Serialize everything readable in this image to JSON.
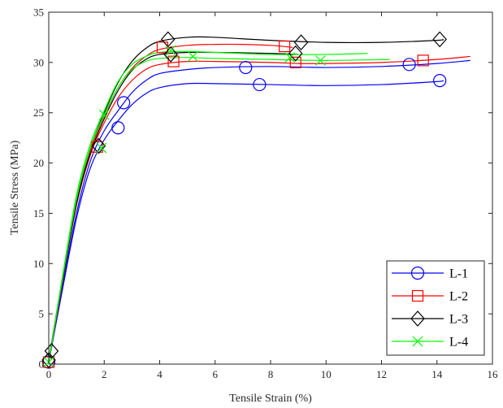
{
  "chart_data": {
    "type": "line",
    "xlabel": "Tensile Strain (%)",
    "ylabel": "Tensile Stress (MPa)",
    "xlim": [
      0,
      16
    ],
    "ylim": [
      0,
      35
    ],
    "xticks": [
      0,
      2,
      4,
      6,
      8,
      10,
      12,
      14,
      16
    ],
    "yticks": [
      0,
      5,
      10,
      15,
      20,
      25,
      30,
      35
    ],
    "xtick_labels": [
      "0",
      "2",
      "4",
      "6",
      "8",
      "10",
      "12",
      "14",
      "16"
    ],
    "ytick_labels": [
      "0",
      "5",
      "10",
      "15",
      "20",
      "25",
      "30",
      "35"
    ],
    "grid": false,
    "legend_position": "bottom-right",
    "series": [
      {
        "name": "L-1",
        "color": "#0000ff",
        "marker": "circle",
        "curves": [
          [
            [
              0,
              0.2
            ],
            [
              0.5,
              7.5
            ],
            [
              1.0,
              14.5
            ],
            [
              1.5,
              19.5
            ],
            [
              2.0,
              22.3
            ],
            [
              2.5,
              24.2
            ],
            [
              3.0,
              25.8
            ],
            [
              3.5,
              26.9
            ],
            [
              4.0,
              27.5
            ],
            [
              5.0,
              27.9
            ],
            [
              6.0,
              27.9
            ],
            [
              8.0,
              27.8
            ],
            [
              10.0,
              27.7
            ],
            [
              12.0,
              27.8
            ],
            [
              14.0,
              28.1
            ],
            [
              14.2,
              28.2
            ]
          ],
          [
            [
              0,
              0.2
            ],
            [
              0.5,
              7.8
            ],
            [
              1.0,
              15.0
            ],
            [
              1.5,
              20.2
            ],
            [
              2.0,
              23.2
            ],
            [
              2.5,
              25.2
            ],
            [
              3.0,
              27.0
            ],
            [
              3.5,
              28.2
            ],
            [
              4.0,
              28.9
            ],
            [
              5.0,
              29.3
            ],
            [
              6.0,
              29.5
            ],
            [
              8.0,
              29.6
            ],
            [
              10.0,
              29.5
            ],
            [
              12.0,
              29.6
            ],
            [
              14.0,
              29.9
            ],
            [
              15.2,
              30.2
            ]
          ]
        ],
        "markers": [
          [
            0,
            0.2
          ],
          [
            2.5,
            23.5
          ],
          [
            2.7,
            26.0
          ],
          [
            7.1,
            29.5
          ],
          [
            7.6,
            27.8
          ],
          [
            13.0,
            29.8
          ],
          [
            14.1,
            28.2
          ]
        ]
      },
      {
        "name": "L-2",
        "color": "#ff0000",
        "marker": "square",
        "curves": [
          [
            [
              0,
              0.2
            ],
            [
              0.5,
              8.2
            ],
            [
              1.0,
              15.8
            ],
            [
              1.5,
              20.8
            ],
            [
              2.0,
              24.0
            ],
            [
              2.5,
              26.5
            ],
            [
              3.0,
              28.2
            ],
            [
              3.5,
              29.3
            ],
            [
              4.0,
              29.8
            ],
            [
              5.0,
              30.1
            ],
            [
              6.0,
              30.1
            ],
            [
              8.0,
              30.0
            ],
            [
              9.0,
              29.9
            ],
            [
              10.0,
              29.9
            ],
            [
              12.0,
              30.0
            ],
            [
              14.0,
              30.3
            ],
            [
              15.2,
              30.6
            ]
          ],
          [
            [
              0,
              0.2
            ],
            [
              0.5,
              8.5
            ],
            [
              1.0,
              16.2
            ],
            [
              1.5,
              21.3
            ],
            [
              2.0,
              24.7
            ],
            [
              2.5,
              27.5
            ],
            [
              3.0,
              29.4
            ],
            [
              3.5,
              30.6
            ],
            [
              4.0,
              31.3
            ],
            [
              5.0,
              31.7
            ],
            [
              6.0,
              31.8
            ],
            [
              7.0,
              31.8
            ],
            [
              8.0,
              31.7
            ],
            [
              8.8,
              31.5
            ]
          ]
        ],
        "markers": [
          [
            0,
            0.2
          ],
          [
            1.75,
            21.6
          ],
          [
            4.1,
            31.5
          ],
          [
            4.5,
            30.1
          ],
          [
            8.5,
            31.6
          ],
          [
            8.9,
            30.0
          ],
          [
            13.5,
            30.2
          ]
        ]
      },
      {
        "name": "L-3",
        "color": "#000000",
        "marker": "diamond",
        "curves": [
          [
            [
              0,
              0.4
            ],
            [
              0.5,
              8.7
            ],
            [
              1.0,
              16.5
            ],
            [
              1.5,
              21.5
            ],
            [
              2.0,
              25.0
            ],
            [
              2.5,
              28.0
            ],
            [
              3.0,
              30.1
            ],
            [
              3.5,
              31.4
            ],
            [
              4.0,
              32.1
            ],
            [
              5.0,
              32.5
            ],
            [
              6.0,
              32.5
            ],
            [
              8.0,
              32.2
            ],
            [
              10.0,
              32.0
            ],
            [
              12.0,
              32.0
            ],
            [
              14.0,
              32.2
            ],
            [
              14.2,
              32.3
            ]
          ],
          [
            [
              0,
              0.4
            ],
            [
              0.5,
              8.4
            ],
            [
              1.0,
              16.0
            ],
            [
              1.5,
              21.0
            ],
            [
              2.0,
              24.4
            ],
            [
              2.5,
              27.2
            ],
            [
              3.0,
              29.2
            ],
            [
              3.5,
              30.3
            ],
            [
              4.0,
              30.8
            ],
            [
              5.0,
              31.0
            ],
            [
              6.0,
              31.0
            ],
            [
              8.0,
              30.9
            ],
            [
              9.0,
              30.8
            ]
          ]
        ],
        "markers": [
          [
            0,
            0.4
          ],
          [
            0.1,
            1.3
          ],
          [
            1.8,
            21.7
          ],
          [
            4.3,
            32.3
          ],
          [
            4.4,
            30.8
          ],
          [
            8.9,
            30.9
          ],
          [
            9.1,
            32.0
          ],
          [
            14.1,
            32.3
          ]
        ]
      },
      {
        "name": "L-4",
        "color": "#00ff00",
        "marker": "x",
        "curves": [
          [
            [
              0,
              0.2
            ],
            [
              0.5,
              8.8
            ],
            [
              1.0,
              16.8
            ],
            [
              1.5,
              21.9
            ],
            [
              2.0,
              25.2
            ],
            [
              2.5,
              28.1
            ],
            [
              3.0,
              29.8
            ],
            [
              3.5,
              30.6
            ],
            [
              4.0,
              31.0
            ],
            [
              5.0,
              31.1
            ],
            [
              6.0,
              31.0
            ],
            [
              8.0,
              30.8
            ],
            [
              10.0,
              30.8
            ],
            [
              11.5,
              30.9
            ]
          ],
          [
            [
              0,
              0.2
            ],
            [
              0.5,
              8.6
            ],
            [
              1.0,
              16.4
            ],
            [
              1.5,
              21.5
            ],
            [
              2.0,
              24.8
            ],
            [
              2.5,
              27.5
            ],
            [
              3.0,
              29.3
            ],
            [
              3.5,
              30.1
            ],
            [
              4.0,
              30.4
            ],
            [
              5.0,
              30.5
            ],
            [
              6.0,
              30.4
            ],
            [
              8.0,
              30.3
            ],
            [
              10.0,
              30.2
            ],
            [
              12.3,
              30.3
            ]
          ]
        ],
        "markers": [
          [
            0,
            0.2
          ],
          [
            1.9,
            21.5
          ],
          [
            2.0,
            24.8
          ],
          [
            4.4,
            31.2
          ],
          [
            5.2,
            30.6
          ],
          [
            8.7,
            30.5
          ],
          [
            9.8,
            30.2
          ]
        ]
      }
    ]
  }
}
